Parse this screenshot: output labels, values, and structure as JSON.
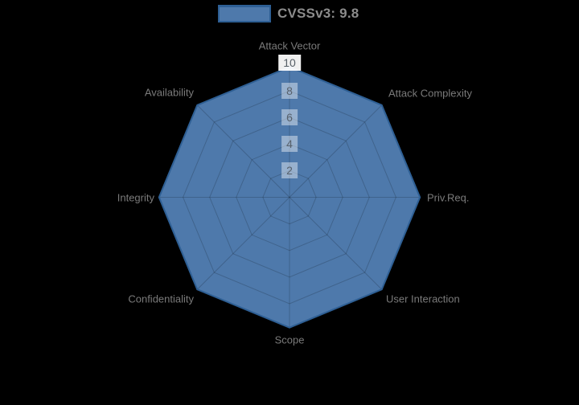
{
  "background": "#000000",
  "legend": {
    "label": "CVSSv3: 9.8",
    "swatch_fill": "#4e79ab",
    "swatch_border": "#2e5f94"
  },
  "chart_data": {
    "type": "radar",
    "title": "",
    "categories": [
      "Attack Vector",
      "Attack Complexity",
      "Priv.Req.",
      "User Interaction",
      "Scope",
      "Confidentiality",
      "Integrity",
      "Availability"
    ],
    "series": [
      {
        "name": "CVSSv3: 9.8",
        "values": [
          9.8,
          9.8,
          9.8,
          9.8,
          9.8,
          9.8,
          9.8,
          9.8
        ]
      }
    ],
    "radial_axis": {
      "min": 0,
      "max": 10,
      "ticks": [
        2,
        4,
        6,
        8,
        10
      ]
    },
    "grid_shape": "polygon",
    "grid_on": true,
    "legend_position": "top-center",
    "fill_color": "#4e79ab",
    "line_color": "#2e5f94",
    "grid_color": "rgba(0,0,0,0.18)"
  }
}
